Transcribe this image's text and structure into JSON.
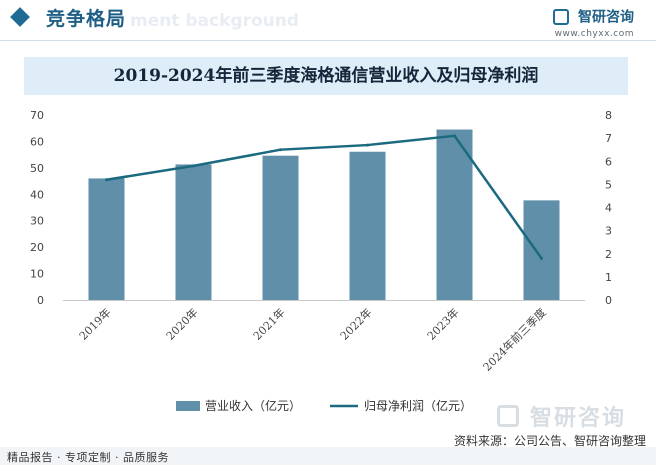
{
  "header": {
    "section_title": "竞争格局",
    "ghost_text": "ment background",
    "brand_name": "智研咨询",
    "brand_url": "www.chyxx.com"
  },
  "colors": {
    "bar": "#5f8fa9",
    "line": "#1b6a80",
    "axis_text": "#444444",
    "title_band": "#deedf7"
  },
  "chart_data": {
    "type": "bar+line",
    "title": "2019-2024年前三季度海格通信营业收入及归母净利润",
    "categories": [
      "2019年",
      "2020年",
      "2021年",
      "2022年",
      "2023年",
      "2024年前三季度"
    ],
    "series": [
      {
        "name": "营业收入（亿元）",
        "type": "bar",
        "axis": "left",
        "values": [
          46.0,
          51.3,
          54.6,
          56.1,
          64.5,
          37.7
        ]
      },
      {
        "name": "归母净利润（亿元）",
        "type": "line",
        "axis": "right",
        "values": [
          5.2,
          5.8,
          6.5,
          6.7,
          7.1,
          1.8
        ]
      }
    ],
    "y_left": {
      "min": 0,
      "max": 70,
      "ticks": [
        0,
        10,
        20,
        30,
        40,
        50,
        60,
        70
      ]
    },
    "y_right": {
      "min": 0,
      "max": 8,
      "ticks": [
        0,
        1,
        2,
        3,
        4,
        5,
        6,
        7,
        8
      ]
    },
    "grid": false,
    "legend_position": "bottom"
  },
  "footer": {
    "left_text": "精品报告 · 专项定制 · 品质服务",
    "source_text": "资料来源：公司公告、智研咨询整理",
    "watermark_name": "智研咨询"
  }
}
